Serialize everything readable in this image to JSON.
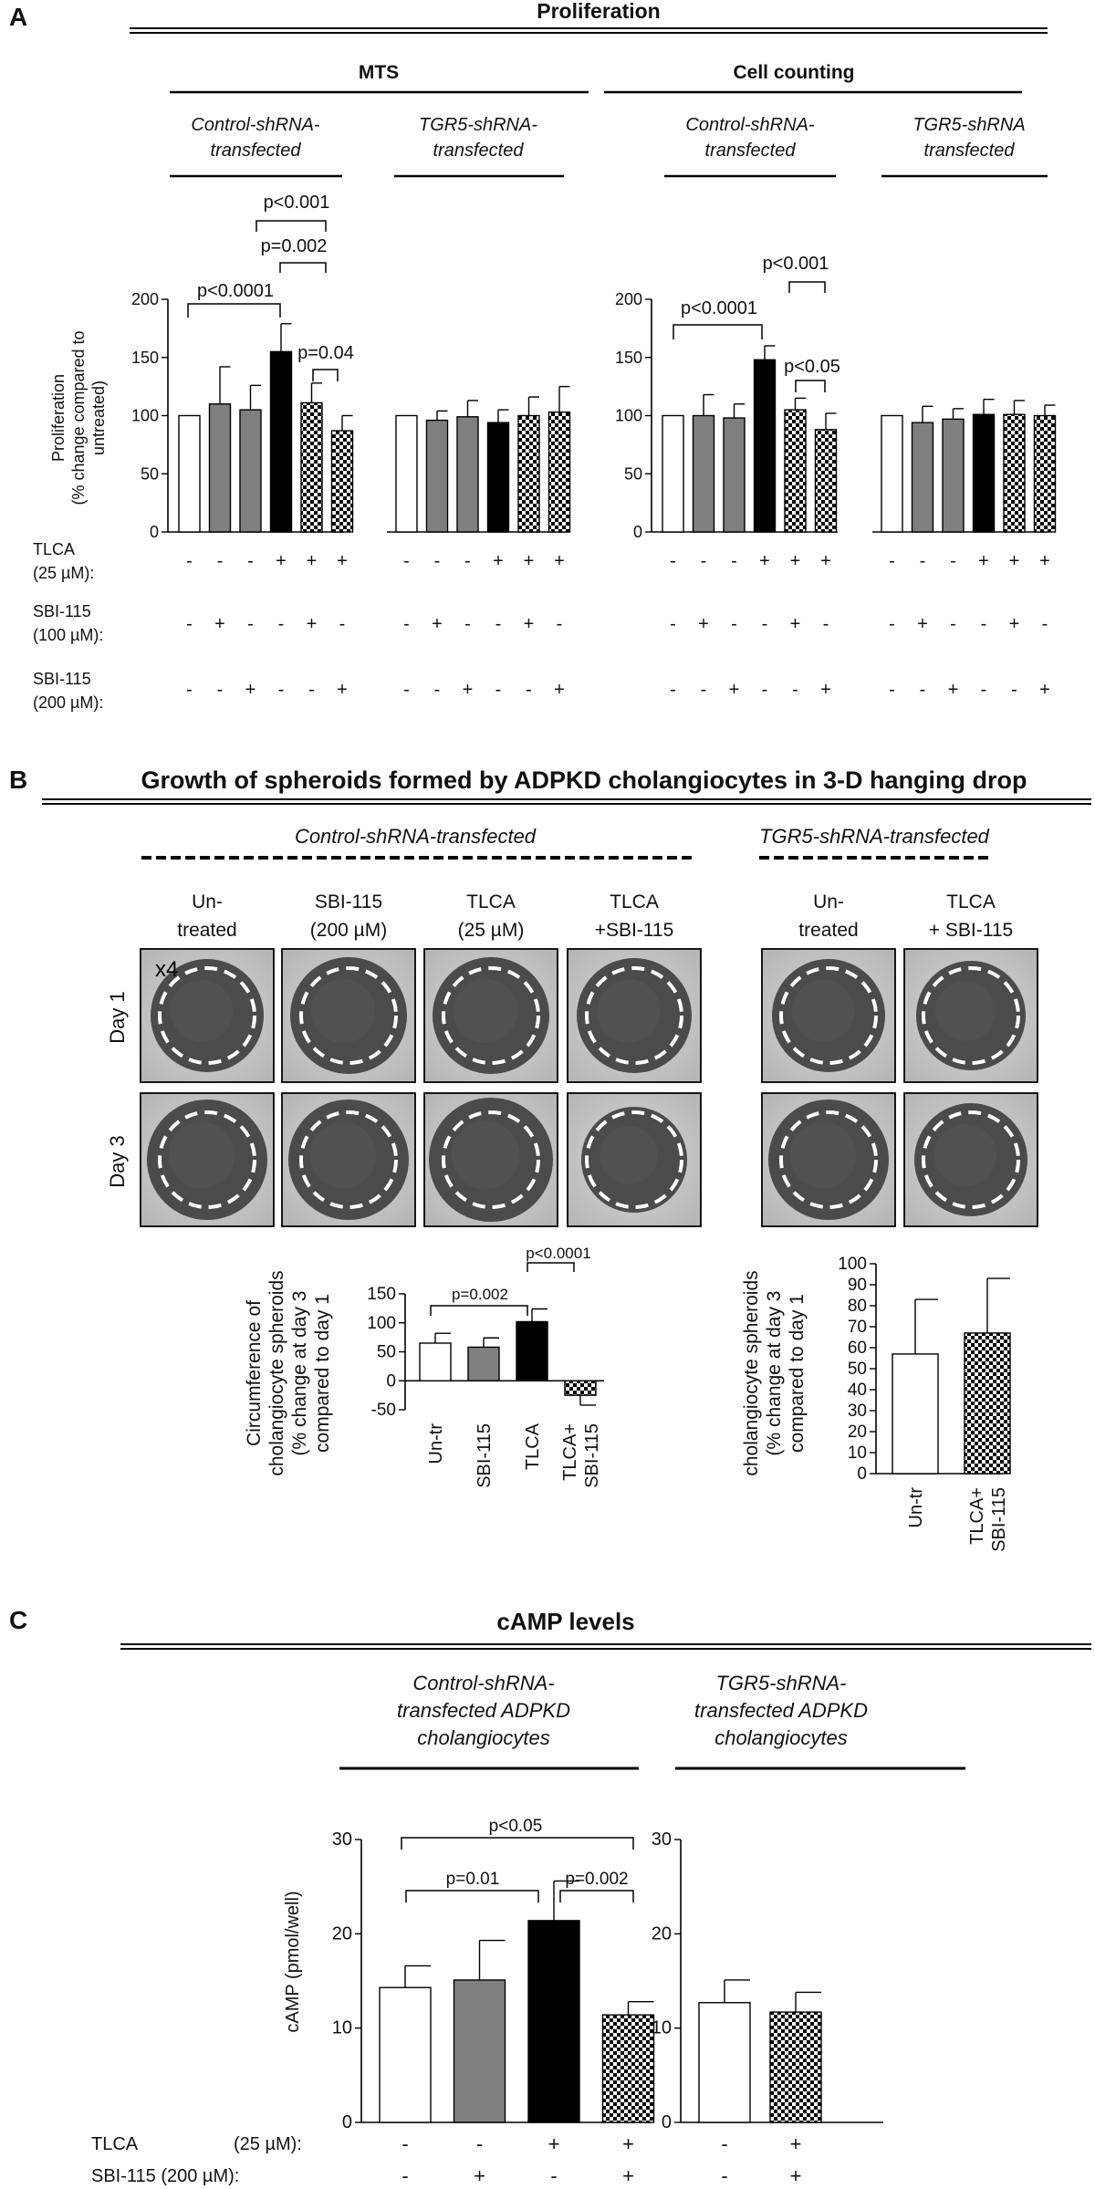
{
  "panels": {
    "A": {
      "letter": "A",
      "title": "Proliferation",
      "mts_title": "MTS",
      "cc_title": "Cell counting",
      "groups": [
        "Control-shRNA-",
        "transfected",
        "TGR5-shRNA-",
        "transfected",
        "Control-shRNA-",
        "transfected",
        "TGR5-shRNA",
        "transfected"
      ],
      "y_axis_label": [
        "Proliferation",
        "(% change compared to",
        "untreated)"
      ],
      "condition_labels": [
        "TLCA",
        "(25 µM):",
        "SBI-115",
        "(100 µM):",
        "SBI-115",
        "(200 µM):"
      ],
      "conditions": {
        "tlca": [
          "-",
          "-",
          "-",
          "+",
          "+",
          "+"
        ],
        "sbi100": [
          "-",
          "+",
          "-",
          "-",
          "+",
          "-"
        ],
        "sbi200": [
          "-",
          "-",
          "+",
          "-",
          "-",
          "+"
        ]
      },
      "pvalues_mts": [
        "p<0.001",
        "p=0.002",
        "p<0.0001",
        "p=0.04"
      ],
      "pvalues_cc": [
        "p<0.001",
        "p<0.0001",
        "p<0.05"
      ]
    },
    "B": {
      "letter": "B",
      "title": "Growth of spheroids formed by ADPKD cholangiocytes in 3-D hanging drop",
      "control_label": "Control-shRNA-transfected",
      "tgr5_label": "TGR5-shRNA-transfected",
      "column_labels": [
        [
          "Un-",
          "treated"
        ],
        [
          "SBI-115",
          "(200 µM)"
        ],
        [
          "TLCA",
          "(25 µM)"
        ],
        [
          "TLCA",
          "+SBI-115"
        ],
        [
          "Un-",
          "treated"
        ],
        [
          "TLCA",
          "+ SBI-115"
        ]
      ],
      "magnification": "x4",
      "day_labels": [
        "Day 1",
        "Day 3"
      ],
      "y_axis_label": [
        "Circumference of",
        "cholangiocyte spheroids",
        "(% change at day 3",
        "compared to day 1"
      ],
      "pvalues": [
        "p<0.0001",
        "p=0.002"
      ],
      "cat_control": [
        [
          "Un-tr"
        ],
        [
          "SBI-115"
        ],
        [
          "TLCA"
        ],
        [
          "TLCA+",
          "SBI-115"
        ]
      ],
      "cat_tgr5": [
        [
          "Un-tr"
        ],
        [
          "TLCA+",
          "SBI-115"
        ]
      ]
    },
    "C": {
      "letter": "C",
      "title": "cAMP levels",
      "control_label": [
        "Control-shRNA-",
        "transfected ADPKD",
        "cholangiocytes"
      ],
      "tgr5_label": [
        "TGR5-shRNA-",
        "transfected ADPKD",
        "cholangiocytes"
      ],
      "y_axis_label": "cAMP (pmol/well)",
      "condition_labels": [
        "TLCA",
        "(25 µM):",
        "SBI-115 (200 µM):"
      ],
      "conditions_control": {
        "tlca": [
          "-",
          "-",
          "+",
          "+"
        ],
        "sbi": [
          "-",
          "+",
          "-",
          "+"
        ]
      },
      "conditions_tgr5": {
        "tlca": [
          "-",
          "+"
        ],
        "sbi": [
          "-",
          "+"
        ]
      },
      "pvalues": [
        "p<0.05",
        "p=0.01",
        "p=0.002"
      ]
    }
  },
  "chart_data": [
    {
      "type": "bar",
      "id": "A-MTS-control",
      "title": "",
      "ylim": [
        0,
        200
      ],
      "yticks": [
        0,
        50,
        100,
        150,
        200
      ],
      "values": [
        100,
        110,
        105,
        155,
        111,
        87
      ],
      "errors": [
        0,
        32,
        21,
        24,
        17,
        13
      ],
      "fills": [
        "white",
        "gray",
        "gray",
        "black",
        "checker",
        "checker"
      ]
    },
    {
      "type": "bar",
      "id": "A-MTS-tgr5",
      "title": "",
      "ylim": [
        0,
        200
      ],
      "values": [
        100,
        96,
        99,
        94,
        100,
        103
      ],
      "errors": [
        0,
        8,
        14,
        11,
        16,
        22
      ],
      "fills": [
        "white",
        "gray",
        "gray",
        "black",
        "checker",
        "checker"
      ]
    },
    {
      "type": "bar",
      "id": "A-CellCount-control",
      "title": "",
      "ylim": [
        0,
        200
      ],
      "yticks": [
        0,
        50,
        100,
        150,
        200
      ],
      "values": [
        100,
        100,
        98,
        148,
        105,
        88
      ],
      "errors": [
        0,
        18,
        12,
        12,
        10,
        14
      ],
      "fills": [
        "white",
        "gray",
        "gray",
        "black",
        "checker",
        "checker"
      ]
    },
    {
      "type": "bar",
      "id": "A-CellCount-tgr5",
      "title": "",
      "ylim": [
        0,
        200
      ],
      "values": [
        100,
        94,
        97,
        101,
        101,
        100
      ],
      "errors": [
        0,
        14,
        9,
        13,
        12,
        9
      ],
      "fills": [
        "white",
        "gray",
        "gray",
        "black",
        "checker",
        "checker"
      ]
    },
    {
      "type": "bar",
      "id": "B-control",
      "title": "",
      "ylim": [
        -50,
        150
      ],
      "yticks": [
        -50,
        0,
        50,
        100,
        150
      ],
      "categories": [
        "Un-tr",
        "SBI-115",
        "TLCA",
        "TLCA+ SBI-115"
      ],
      "values": [
        65,
        58,
        102,
        -25
      ],
      "errors": [
        17,
        16,
        22,
        17
      ],
      "fills": [
        "white",
        "gray",
        "black",
        "checker"
      ]
    },
    {
      "type": "bar",
      "id": "B-tgr5",
      "title": "",
      "ylim": [
        0,
        100
      ],
      "yticks": [
        0,
        10,
        20,
        30,
        40,
        50,
        60,
        70,
        80,
        90,
        100
      ],
      "categories": [
        "Un-tr",
        "TLCA+ SBI-115"
      ],
      "values": [
        57,
        67
      ],
      "errors": [
        26,
        26
      ],
      "fills": [
        "white",
        "checker"
      ]
    },
    {
      "type": "bar",
      "id": "C-control",
      "title": "",
      "ylim": [
        0,
        30
      ],
      "yticks": [
        0,
        10,
        20,
        30
      ],
      "values": [
        14.3,
        15.1,
        21.4,
        11.4
      ],
      "errors": [
        2.3,
        4.2,
        4.2,
        1.4
      ],
      "fills": [
        "white",
        "gray",
        "black",
        "checker"
      ]
    },
    {
      "type": "bar",
      "id": "C-tgr5",
      "title": "",
      "ylim": [
        0,
        30
      ],
      "yticks": [
        0,
        10,
        20,
        30
      ],
      "values": [
        12.7,
        11.7
      ],
      "errors": [
        2.4,
        2.1
      ],
      "fills": [
        "white",
        "checker"
      ]
    }
  ],
  "colors": {
    "gray_bar": "#7f7f7f",
    "black_bar": "#000000",
    "photo_bg": "#c9c9c9",
    "spheroid": "#3a3a3a"
  }
}
